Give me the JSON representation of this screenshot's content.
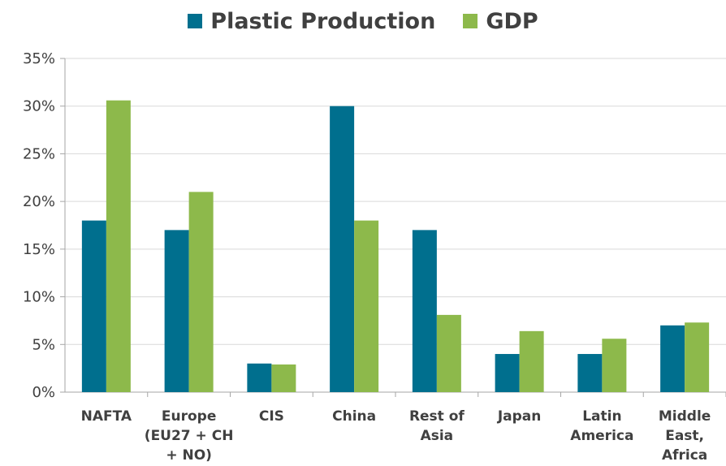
{
  "chart_data": {
    "type": "bar",
    "title": "",
    "xlabel": "",
    "ylabel": "",
    "ylim": [
      0,
      35
    ],
    "y_ticks": [
      0,
      5,
      10,
      15,
      20,
      25,
      30,
      35
    ],
    "y_tick_format": "percent",
    "grid": true,
    "legend_position": "top",
    "categories": [
      [
        "NAFTA"
      ],
      [
        "Europe",
        "(EU27 + CH",
        "+ NO)"
      ],
      [
        "CIS"
      ],
      [
        "China"
      ],
      [
        "Rest of",
        "Asia"
      ],
      [
        "Japan"
      ],
      [
        "Latin",
        "America"
      ],
      [
        "Middle",
        "East,",
        "Africa"
      ]
    ],
    "series": [
      {
        "name": "Plastic Production",
        "color": "#006f8e",
        "values": [
          18,
          17,
          3,
          30,
          17,
          4,
          4,
          7
        ]
      },
      {
        "name": "GDP",
        "color": "#8db94b",
        "values": [
          30.6,
          21,
          2.9,
          18,
          8.1,
          6.4,
          5.6,
          7.3
        ]
      }
    ]
  }
}
